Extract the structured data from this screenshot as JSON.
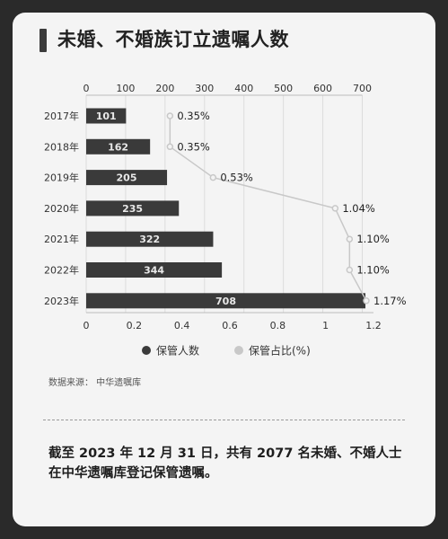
{
  "header": {
    "title": "未婚、不婚族订立遗嘱人数"
  },
  "chart_data": {
    "type": "bar",
    "title": "",
    "categories": [
      "2017年",
      "2018年",
      "2019年",
      "2020年",
      "2021年",
      "2022年",
      "2023年"
    ],
    "top_axis": {
      "min": 0,
      "max": 700,
      "ticks": [
        0,
        100,
        200,
        300,
        400,
        500,
        600,
        700
      ]
    },
    "bottom_axis": {
      "min": 0,
      "max": 1.2,
      "ticks": [
        0,
        0.2,
        0.4,
        0.6,
        0.8,
        1,
        1.2
      ]
    },
    "series": [
      {
        "name": "保管人数",
        "type": "bar",
        "axis": "top",
        "color": "#3a3a3a",
        "values": [
          101,
          162,
          205,
          235,
          322,
          344,
          708
        ],
        "labels": [
          "101",
          "162",
          "205",
          "235",
          "322",
          "344",
          "708"
        ]
      },
      {
        "name": "保管占比(%)",
        "type": "line",
        "axis": "bottom",
        "color": "#c8c8c8",
        "values": [
          0.35,
          0.35,
          0.53,
          1.04,
          1.1,
          1.1,
          1.17
        ],
        "labels": [
          "0.35%",
          "0.35%",
          "0.53%",
          "1.04%",
          "1.10%",
          "1.10%",
          "1.17%"
        ]
      }
    ],
    "legend": {
      "position": "bottom"
    }
  },
  "source": "数据来源：  中华遗嘱库",
  "summary": "截至 2023 年 12 月 31 日，共有 2077 名未婚、不婚人士在中华遗嘱库登记保管遗嘱。"
}
